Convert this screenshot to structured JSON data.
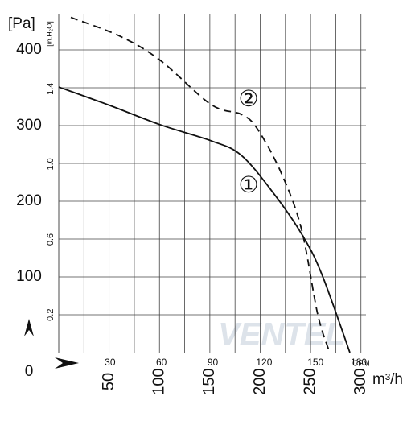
{
  "chart_data": {
    "type": "line",
    "y_unit": "[Pa]",
    "y2_unit": "[in.H₂O]",
    "x_unit": "m³/h",
    "x2_unit": "CFM",
    "watermark": "VENTEL",
    "xlim": [
      0,
      305
    ],
    "xticks": [
      50,
      100,
      150,
      200,
      250,
      300
    ],
    "x2lim": [
      0,
      179.5
    ],
    "x2ticks": [
      30,
      60,
      90,
      120,
      150,
      180
    ],
    "ylim": [
      0,
      450
    ],
    "yticks": [
      0,
      100,
      200,
      300,
      400
    ],
    "y2lim": [
      0,
      1.807
    ],
    "y2ticks": [
      0.2,
      0.6,
      {
        "value": 1,
        "label": "1.0"
      },
      1.4
    ],
    "xgrid": [
      0,
      25,
      50,
      75,
      100,
      125,
      150,
      175,
      200,
      225,
      250,
      275,
      300
    ],
    "ygrid": [
      50,
      100,
      150,
      200,
      250,
      300,
      350,
      400
    ],
    "series": [
      {
        "name": "①",
        "color": "#111111",
        "dash": false,
        "x": [
          0,
          50,
          101,
          151,
          181,
          213,
          241,
          261,
          289
        ],
        "values": [
          351,
          327,
          301,
          280,
          261,
          211,
          157,
          104,
          0
        ]
      },
      {
        "name": "②",
        "color": "#111111",
        "dash": true,
        "x": [
          12,
          61,
          101,
          151,
          181,
          197,
          221,
          241,
          257,
          269
        ],
        "values": [
          443,
          418,
          386,
          328,
          315,
          296,
          237,
          163,
          51,
          0
        ]
      }
    ]
  }
}
